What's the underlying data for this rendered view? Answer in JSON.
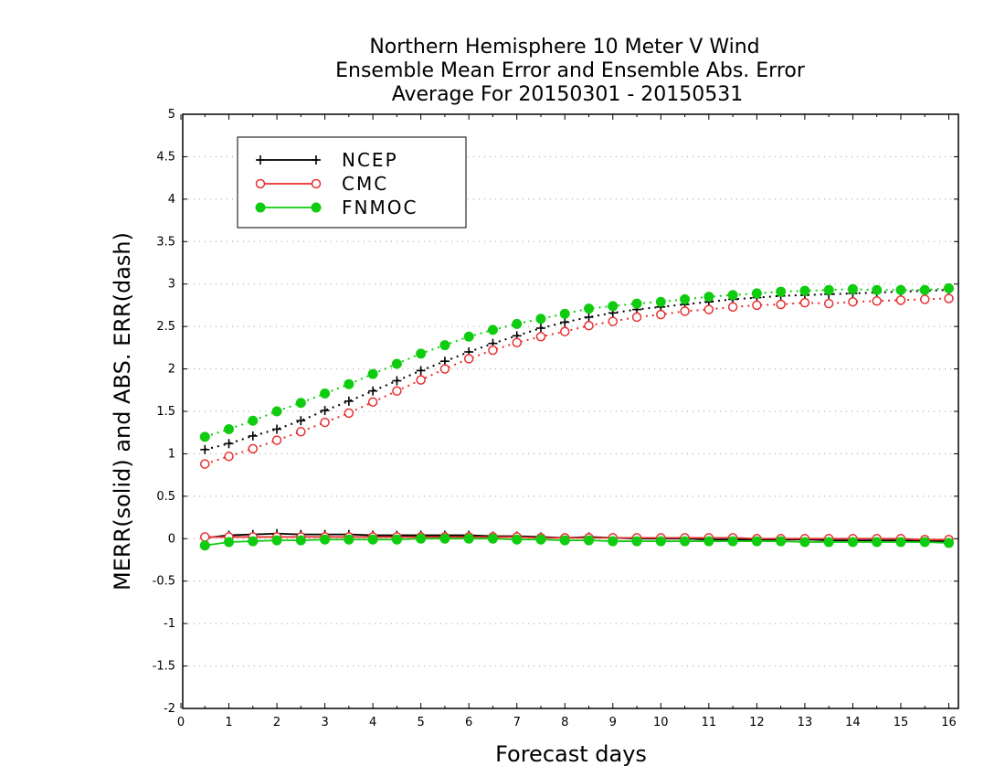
{
  "chart_data": {
    "type": "line",
    "title_lines": [
      "Northern Hemisphere 10 Meter V Wind",
      "Ensemble Mean Error and Ensemble Abs. Error",
      "Average For 20150301 - 20150531"
    ],
    "xlabel": "Forecast days",
    "ylabel": "MERR(solid) and ABS. ERR(dash)",
    "xlim": [
      0,
      16.2
    ],
    "ylim": [
      -2,
      5
    ],
    "x_ticks": [
      "0",
      "1",
      "2",
      "3",
      "4",
      "5",
      "6",
      "7",
      "8",
      "9",
      "10",
      "11",
      "12",
      "13",
      "14",
      "15",
      "16"
    ],
    "y_ticks": [
      "5",
      "4.5",
      "4",
      "3.5",
      "3",
      "2.5",
      "2",
      "1.5",
      "1",
      "0.5",
      "0",
      "-0.5",
      "-1",
      "-1.5",
      "-2"
    ],
    "grid": "dotted horizontal",
    "legend_position": "top-left",
    "x": [
      0.5,
      1,
      1.5,
      2,
      2.5,
      3,
      3.5,
      4,
      4.5,
      5,
      5.5,
      6,
      6.5,
      7,
      7.5,
      8,
      8.5,
      9,
      9.5,
      10,
      10.5,
      11,
      11.5,
      12,
      12.5,
      13,
      13.5,
      14,
      14.5,
      15,
      15.5,
      16
    ],
    "series": [
      {
        "name": "NCEP",
        "color": "#000000",
        "marker": "plus",
        "abs_error": [
          1.05,
          1.12,
          1.21,
          1.29,
          1.39,
          1.51,
          1.62,
          1.74,
          1.86,
          1.98,
          2.09,
          2.2,
          2.3,
          2.39,
          2.48,
          2.55,
          2.61,
          2.66,
          2.7,
          2.73,
          2.76,
          2.79,
          2.82,
          2.84,
          2.86,
          2.87,
          2.88,
          2.89,
          2.9,
          2.91,
          2.92,
          2.93
        ],
        "mean_error": [
          0.01,
          0.04,
          0.05,
          0.06,
          0.05,
          0.05,
          0.05,
          0.04,
          0.04,
          0.04,
          0.04,
          0.04,
          0.03,
          0.03,
          0.02,
          0.01,
          0.02,
          0.01,
          0.0,
          0.0,
          0.0,
          -0.01,
          -0.01,
          -0.01,
          -0.01,
          -0.01,
          -0.02,
          -0.02,
          -0.02,
          -0.02,
          -0.03,
          -0.03
        ]
      },
      {
        "name": "CMC",
        "color": "#e83030",
        "marker": "open-circle",
        "abs_error": [
          0.88,
          0.97,
          1.06,
          1.16,
          1.26,
          1.37,
          1.48,
          1.61,
          1.74,
          1.87,
          2.0,
          2.12,
          2.22,
          2.31,
          2.38,
          2.44,
          2.51,
          2.56,
          2.61,
          2.64,
          2.68,
          2.7,
          2.73,
          2.75,
          2.76,
          2.78,
          2.77,
          2.79,
          2.8,
          2.81,
          2.82,
          2.83
        ],
        "mean_error": [
          0.02,
          0.02,
          0.02,
          0.02,
          0.02,
          0.02,
          0.02,
          0.02,
          0.02,
          0.02,
          0.02,
          0.02,
          0.02,
          0.02,
          0.01,
          0.01,
          0.01,
          0.01,
          0.01,
          0.01,
          0.01,
          0.01,
          0.01,
          0.0,
          0.0,
          0.0,
          0.0,
          0.0,
          0.0,
          0.0,
          -0.01,
          -0.01
        ]
      },
      {
        "name": "FNMOC",
        "color": "#10cc10",
        "marker": "filled-circle",
        "abs_error": [
          1.2,
          1.29,
          1.39,
          1.5,
          1.6,
          1.71,
          1.82,
          1.94,
          2.06,
          2.18,
          2.28,
          2.38,
          2.46,
          2.53,
          2.59,
          2.65,
          2.71,
          2.74,
          2.77,
          2.79,
          2.82,
          2.85,
          2.87,
          2.89,
          2.91,
          2.92,
          2.93,
          2.94,
          2.93,
          2.93,
          2.93,
          2.95
        ],
        "mean_error": [
          -0.08,
          -0.04,
          -0.03,
          -0.02,
          -0.02,
          -0.01,
          -0.01,
          -0.01,
          -0.01,
          0.0,
          0.0,
          0.0,
          0.0,
          -0.01,
          -0.01,
          -0.02,
          -0.02,
          -0.03,
          -0.03,
          -0.03,
          -0.03,
          -0.03,
          -0.03,
          -0.03,
          -0.03,
          -0.04,
          -0.04,
          -0.04,
          -0.04,
          -0.04,
          -0.04,
          -0.05
        ]
      }
    ]
  }
}
